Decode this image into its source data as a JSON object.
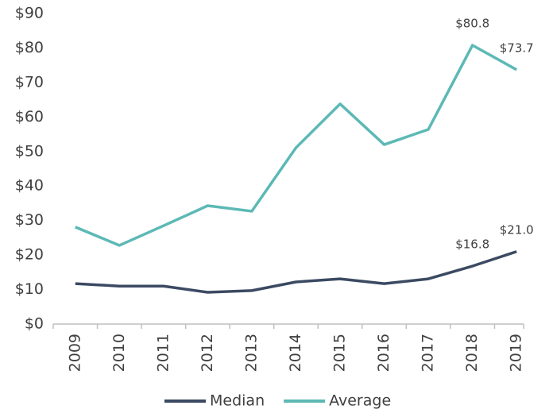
{
  "chart_data": {
    "type": "line",
    "categories": [
      "2009",
      "2010",
      "2011",
      "2012",
      "2013",
      "2014",
      "2015",
      "2016",
      "2017",
      "2018",
      "2019"
    ],
    "series": [
      {
        "name": "Median",
        "color": "#3b4a62",
        "values": [
          11.7,
          11.0,
          11.0,
          9.2,
          9.7,
          12.2,
          13.1,
          11.7,
          13.1,
          16.8,
          21.0
        ],
        "value_labels": [
          null,
          null,
          null,
          null,
          null,
          null,
          null,
          null,
          null,
          "$16.8",
          "$21.0"
        ]
      },
      {
        "name": "Average",
        "color": "#5cb9b5",
        "values": [
          28.1,
          22.8,
          28.5,
          34.3,
          32.7,
          51.1,
          63.8,
          52.0,
          56.4,
          80.8,
          73.7
        ],
        "value_labels": [
          null,
          null,
          null,
          null,
          null,
          null,
          null,
          null,
          null,
          "$80.8",
          "$73.7"
        ]
      }
    ],
    "ylim": [
      0,
      90
    ],
    "yticks": [
      {
        "value": 0,
        "label": "$0"
      },
      {
        "value": 10,
        "label": "$10"
      },
      {
        "value": 20,
        "label": "$20"
      },
      {
        "value": 30,
        "label": "$30"
      },
      {
        "value": 40,
        "label": "$40"
      },
      {
        "value": 50,
        "label": "$50"
      },
      {
        "value": 60,
        "label": "$60"
      },
      {
        "value": 70,
        "label": "$70"
      },
      {
        "value": 80,
        "label": "$80"
      },
      {
        "value": 90,
        "label": "$90"
      }
    ],
    "grid": false,
    "legend": "bottom"
  }
}
